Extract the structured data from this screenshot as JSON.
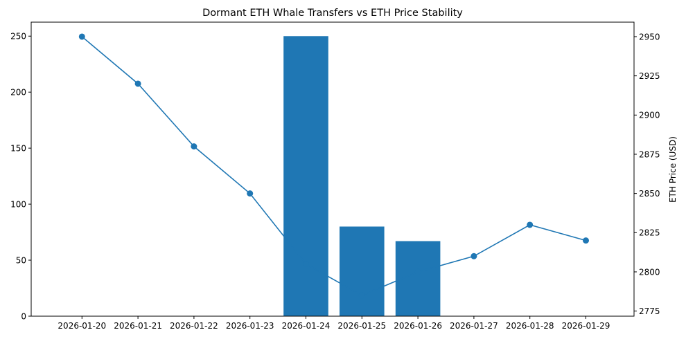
{
  "chart_data": {
    "type": "bar",
    "title": "Dormant ETH Whale Transfers vs ETH Price Stability",
    "xlabel": "",
    "ylabel": "",
    "y2label": "ETH Price (USD)",
    "categories": [
      "2026-01-20",
      "2026-01-21",
      "2026-01-22",
      "2026-01-23",
      "2026-01-24",
      "2026-01-25",
      "2026-01-26",
      "2026-01-27",
      "2026-01-28",
      "2026-01-29"
    ],
    "series": [
      {
        "axis": "left",
        "type": "bar",
        "values": [
          0,
          0,
          0,
          0,
          250,
          80,
          67,
          0,
          0,
          0
        ],
        "color": "#1f77b4"
      },
      {
        "axis": "right",
        "type": "line",
        "values": [
          2950,
          2920,
          2880,
          2850,
          2805,
          2785,
          2800,
          2810,
          2830,
          2820
        ],
        "color": "#1f77b4"
      }
    ],
    "ylim": [
      0,
      262.5
    ],
    "y2lim": [
      2771.75,
      2959.25
    ],
    "yticks": [
      0,
      50,
      100,
      150,
      200,
      250
    ],
    "y2ticks": [
      2775,
      2800,
      2825,
      2850,
      2875,
      2900,
      2925,
      2950
    ],
    "grid": false,
    "legend": "none"
  }
}
